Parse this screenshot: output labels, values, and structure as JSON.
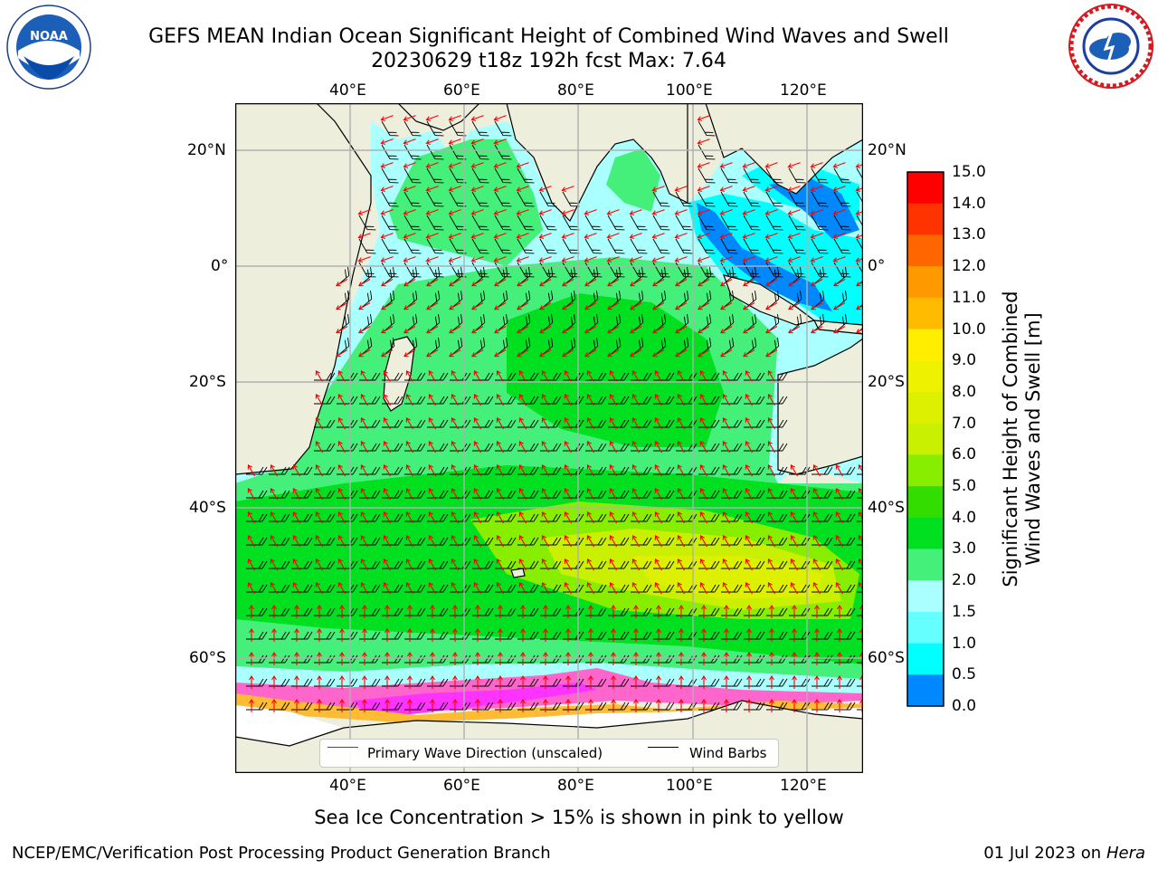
{
  "title": {
    "line1": "GEFS MEAN Indian Ocean Significant Height of Combined Wind Waves and Swell",
    "line2": "20230629 t18z 192h fcst   Max: 7.64"
  },
  "logos": {
    "noaa": {
      "text": "NOAA",
      "icon": "noaa-logo-icon"
    },
    "nws": {
      "icon": "nws-logo-icon"
    }
  },
  "axes": {
    "lon_labels": [
      "40°E",
      "60°E",
      "80°E",
      "100°E",
      "120°E"
    ],
    "lat_left_labels": [
      "20°N",
      "0°",
      "20°S",
      "40°S",
      "60°S"
    ],
    "lat_right_labels": [
      "20°N",
      "0°",
      "20°S",
      "40°S",
      "60°S"
    ]
  },
  "colorbar": {
    "label_line1": "Significant Height of Combined",
    "label_line2": "Wind Waves and Swell [m]",
    "ticks": [
      "15.0",
      "14.0",
      "13.0",
      "12.0",
      "11.0",
      "10.0",
      "9.0",
      "8.0",
      "7.0",
      "6.0",
      "5.0",
      "4.0",
      "3.0",
      "2.0",
      "1.5",
      "1.0",
      "0.5",
      "0.0"
    ],
    "colors": [
      "#ff0000",
      "#ff3300",
      "#ff6600",
      "#ff9900",
      "#ffbb00",
      "#ffee00",
      "#eef200",
      "#ddf000",
      "#c8f000",
      "#88ee00",
      "#33dd00",
      "#00e020",
      "#44f07a",
      "#aaffff",
      "#66ffff",
      "#00ffff",
      "#0088ff",
      "#0000ff"
    ]
  },
  "legend": {
    "wave_label": "Primary Wave Direction (unscaled)",
    "barb_label": "Wind Barbs",
    "wave_color": "#ff0000",
    "barb_color": "#000000"
  },
  "caption": "Sea Ice Concentration > 15% is shown in pink to yellow",
  "footer": {
    "left": "NCEP/EMC/Verification Post Processing Product Generation Branch",
    "right_date": "01 Jul 2023 on ",
    "right_machine": "Hera"
  }
}
